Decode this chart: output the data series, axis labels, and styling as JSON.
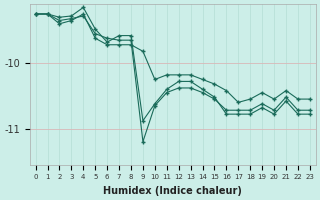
{
  "xlabel": "Humidex (Indice chaleur)",
  "ylabel": "",
  "background_color": "#cceee8",
  "grid_color_v": "#b8e0d8",
  "grid_color_h": "#d8b8b8",
  "line_color": "#1a6b5a",
  "xlim": [
    -0.5,
    23.5
  ],
  "ylim": [
    -11.55,
    -9.1
  ],
  "yticks": [
    -11.0,
    -10.0
  ],
  "xticks": [
    0,
    1,
    2,
    3,
    4,
    5,
    6,
    7,
    8,
    9,
    10,
    11,
    12,
    13,
    14,
    15,
    16,
    17,
    18,
    19,
    20,
    21,
    22,
    23
  ],
  "series": [
    {
      "x": [
        0,
        1,
        2,
        3,
        4,
        5,
        6,
        7,
        8,
        9,
        10,
        11,
        12,
        13,
        14,
        15,
        16,
        17,
        18,
        19,
        20,
        21,
        22,
        23
      ],
      "y": [
        -9.25,
        -9.25,
        -9.4,
        -9.35,
        -9.25,
        -9.62,
        -9.72,
        -9.72,
        -9.72,
        -9.82,
        -10.25,
        -10.18,
        -10.18,
        -10.18,
        -10.25,
        -10.32,
        -10.42,
        -10.6,
        -10.55,
        -10.45,
        -10.55,
        -10.42,
        -10.55,
        -10.55
      ]
    },
    {
      "x": [
        0,
        1,
        2,
        3,
        4,
        5,
        6,
        7,
        8,
        9,
        10,
        11,
        12,
        13,
        14,
        15,
        16,
        17,
        18,
        19,
        20,
        21,
        22,
        23
      ],
      "y": [
        -9.25,
        -9.25,
        -9.3,
        -9.28,
        -9.15,
        -9.48,
        -9.68,
        -9.58,
        -9.58,
        -10.88,
        -10.62,
        -10.4,
        -10.28,
        -10.28,
        -10.4,
        -10.52,
        -10.78,
        -10.78,
        -10.78,
        -10.68,
        -10.78,
        -10.58,
        -10.78,
        -10.78
      ]
    },
    {
      "x": [
        0,
        1,
        2,
        3,
        4,
        5,
        6,
        7,
        8,
        9,
        10,
        11,
        12,
        13,
        14,
        15,
        16,
        17,
        18,
        19,
        20,
        21,
        22,
        23
      ],
      "y": [
        -9.25,
        -9.25,
        -9.35,
        -9.32,
        -9.28,
        -9.55,
        -9.62,
        -9.65,
        -9.65,
        -11.2,
        -10.65,
        -10.45,
        -10.38,
        -10.38,
        -10.45,
        -10.55,
        -10.72,
        -10.72,
        -10.72,
        -10.62,
        -10.72,
        -10.52,
        -10.72,
        -10.72
      ]
    }
  ]
}
